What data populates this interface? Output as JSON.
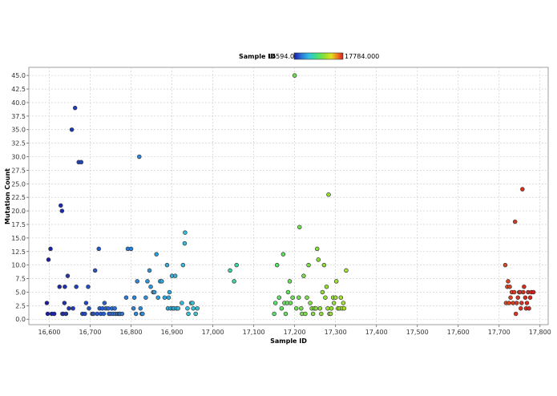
{
  "chart_data": {
    "type": "scatter",
    "xlabel": "Sample ID",
    "ylabel": "Mutation Count",
    "xlim": [
      16550,
      17820
    ],
    "ylim": [
      -1,
      46.5
    ],
    "x_ticks": [
      16600,
      16700,
      16800,
      16900,
      17000,
      17100,
      17200,
      17300,
      17400,
      17500,
      17600,
      17700,
      17800
    ],
    "x_tick_labels": [
      "16,600",
      "16,700",
      "16,800",
      "16,900",
      "17,000",
      "17,100",
      "17,200",
      "17,300",
      "17,400",
      "17,500",
      "17,600",
      "17,700",
      "17,800"
    ],
    "y_ticks": [
      0,
      2.5,
      5,
      7.5,
      10,
      12.5,
      15,
      17.5,
      20,
      22.5,
      25,
      27.5,
      30,
      32.5,
      35,
      37.5,
      40,
      42.5,
      45
    ],
    "y_tick_labels": [
      "0.0",
      "2.5",
      "5.0",
      "7.5",
      "10.0",
      "12.5",
      "15.0",
      "17.5",
      "20.0",
      "22.5",
      "25.0",
      "27.5",
      "30.0",
      "32.5",
      "35.0",
      "37.5",
      "40.0",
      "42.5",
      "45.0"
    ],
    "grid": true,
    "color_scale": {
      "title": "Sample ID",
      "min_label": "16594.000",
      "max_label": "17784.000",
      "min": 16594,
      "max": 17784,
      "colors": [
        "#1a1aa8",
        "#2a6fd6",
        "#30c0e0",
        "#40e080",
        "#90e030",
        "#e0e020",
        "#f08020",
        "#d02020"
      ]
    },
    "points": [
      [
        16594,
        3
      ],
      [
        16596,
        1
      ],
      [
        16598,
        11
      ],
      [
        16603,
        13
      ],
      [
        16606,
        1
      ],
      [
        16612,
        1
      ],
      [
        16625,
        6
      ],
      [
        16628,
        21
      ],
      [
        16631,
        20
      ],
      [
        16632,
        1
      ],
      [
        16634,
        1
      ],
      [
        16637,
        3
      ],
      [
        16638,
        6
      ],
      [
        16641,
        1
      ],
      [
        16645,
        8
      ],
      [
        16648,
        2
      ],
      [
        16655,
        35
      ],
      [
        16658,
        2
      ],
      [
        16663,
        39
      ],
      [
        16666,
        6
      ],
      [
        16672,
        29
      ],
      [
        16678,
        29
      ],
      [
        16681,
        1
      ],
      [
        16687,
        1
      ],
      [
        16690,
        3
      ],
      [
        16695,
        6
      ],
      [
        16697,
        2
      ],
      [
        16705,
        1
      ],
      [
        16708,
        1
      ],
      [
        16712,
        9
      ],
      [
        16717,
        1
      ],
      [
        16721,
        13
      ],
      [
        16723,
        2
      ],
      [
        16726,
        1
      ],
      [
        16730,
        2
      ],
      [
        16733,
        1
      ],
      [
        16735,
        3
      ],
      [
        16738,
        2
      ],
      [
        16744,
        2
      ],
      [
        16746,
        1
      ],
      [
        16750,
        1
      ],
      [
        16753,
        2
      ],
      [
        16756,
        1
      ],
      [
        16760,
        2
      ],
      [
        16762,
        1
      ],
      [
        16767,
        1
      ],
      [
        16771,
        1
      ],
      [
        16773,
        1
      ],
      [
        16778,
        1
      ],
      [
        16788,
        4
      ],
      [
        16792,
        13
      ],
      [
        16800,
        13
      ],
      [
        16806,
        2
      ],
      [
        16808,
        4
      ],
      [
        16812,
        1
      ],
      [
        16815,
        7
      ],
      [
        16820,
        30
      ],
      [
        16823,
        2
      ],
      [
        16826,
        1
      ],
      [
        16828,
        1
      ],
      [
        16836,
        4
      ],
      [
        16840,
        7
      ],
      [
        16845,
        9
      ],
      [
        16848,
        6
      ],
      [
        16854,
        5
      ],
      [
        16857,
        5
      ],
      [
        16862,
        12
      ],
      [
        16866,
        4
      ],
      [
        16871,
        7
      ],
      [
        16875,
        7
      ],
      [
        16882,
        4
      ],
      [
        16888,
        10
      ],
      [
        16890,
        2
      ],
      [
        16892,
        4
      ],
      [
        16894,
        5
      ],
      [
        16897,
        2
      ],
      [
        16900,
        8
      ],
      [
        16902,
        2
      ],
      [
        16905,
        2
      ],
      [
        16908,
        8
      ],
      [
        16911,
        2
      ],
      [
        16915,
        2
      ],
      [
        16924,
        3
      ],
      [
        16927,
        10
      ],
      [
        16931,
        14
      ],
      [
        16932,
        16
      ],
      [
        16938,
        2
      ],
      [
        16940,
        1
      ],
      [
        16947,
        3
      ],
      [
        16950,
        3
      ],
      [
        16952,
        2
      ],
      [
        16958,
        1
      ],
      [
        16962,
        2
      ],
      [
        17042,
        9
      ],
      [
        17052,
        7
      ],
      [
        17058,
        10
      ],
      [
        17150,
        1
      ],
      [
        17153,
        3
      ],
      [
        17157,
        10
      ],
      [
        17162,
        4
      ],
      [
        17168,
        2
      ],
      [
        17172,
        12
      ],
      [
        17175,
        3
      ],
      [
        17178,
        1
      ],
      [
        17182,
        3
      ],
      [
        17184,
        5
      ],
      [
        17188,
        7
      ],
      [
        17190,
        3
      ],
      [
        17195,
        4
      ],
      [
        17200,
        45
      ],
      [
        17204,
        2
      ],
      [
        17210,
        4
      ],
      [
        17212,
        17
      ],
      [
        17216,
        2
      ],
      [
        17218,
        1
      ],
      [
        17222,
        8
      ],
      [
        17226,
        1
      ],
      [
        17230,
        4
      ],
      [
        17234,
        10
      ],
      [
        17238,
        3
      ],
      [
        17242,
        2
      ],
      [
        17245,
        1
      ],
      [
        17248,
        2
      ],
      [
        17252,
        2
      ],
      [
        17255,
        13
      ],
      [
        17258,
        11
      ],
      [
        17262,
        2
      ],
      [
        17265,
        1
      ],
      [
        17268,
        5
      ],
      [
        17272,
        10
      ],
      [
        17275,
        4
      ],
      [
        17278,
        6
      ],
      [
        17281,
        2
      ],
      [
        17283,
        23
      ],
      [
        17285,
        1
      ],
      [
        17288,
        1
      ],
      [
        17290,
        2
      ],
      [
        17294,
        4
      ],
      [
        17296,
        3
      ],
      [
        17300,
        4
      ],
      [
        17302,
        7
      ],
      [
        17306,
        2
      ],
      [
        17310,
        2
      ],
      [
        17313,
        4
      ],
      [
        17316,
        2
      ],
      [
        17319,
        3
      ],
      [
        17321,
        2
      ],
      [
        17326,
        9
      ],
      [
        17715,
        10
      ],
      [
        17717,
        3
      ],
      [
        17720,
        6
      ],
      [
        17722,
        7
      ],
      [
        17724,
        3
      ],
      [
        17726,
        6
      ],
      [
        17728,
        4
      ],
      [
        17731,
        5
      ],
      [
        17734,
        3
      ],
      [
        17737,
        5
      ],
      [
        17739,
        18
      ],
      [
        17741,
        1
      ],
      [
        17743,
        3
      ],
      [
        17746,
        4
      ],
      [
        17749,
        5
      ],
      [
        17751,
        5
      ],
      [
        17753,
        2
      ],
      [
        17755,
        3
      ],
      [
        17757,
        24
      ],
      [
        17759,
        5
      ],
      [
        17761,
        6
      ],
      [
        17764,
        4
      ],
      [
        17766,
        2
      ],
      [
        17768,
        3
      ],
      [
        17771,
        5
      ],
      [
        17773,
        2
      ],
      [
        17776,
        4
      ],
      [
        17779,
        5
      ],
      [
        17784,
        5
      ]
    ]
  }
}
